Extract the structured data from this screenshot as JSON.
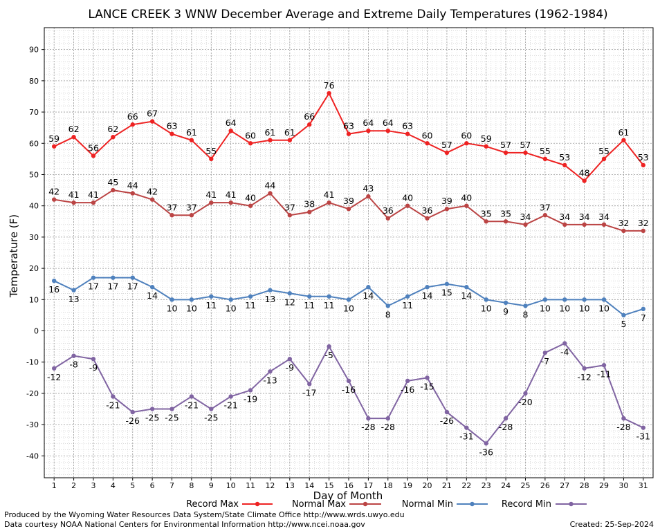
{
  "chart_data": {
    "type": "line",
    "title": "LANCE CREEK 3 WNW December Average and Extreme Daily Temperatures (1962-1984)",
    "xlabel": "Day of Month",
    "ylabel": "Temperature (F)",
    "ylim": [
      -47,
      97
    ],
    "xlim": [
      0.5,
      31.5
    ],
    "yticks": [
      -40,
      -30,
      -20,
      -10,
      0,
      10,
      20,
      30,
      40,
      50,
      60,
      70,
      80,
      90
    ],
    "x": [
      1,
      2,
      3,
      4,
      5,
      6,
      7,
      8,
      9,
      10,
      11,
      12,
      13,
      14,
      15,
      16,
      17,
      18,
      19,
      20,
      21,
      22,
      23,
      24,
      25,
      26,
      27,
      28,
      29,
      30,
      31
    ],
    "grid": true,
    "legend": "bottom",
    "series": [
      {
        "name": "Record Max",
        "color": "#ee2222",
        "values": [
          59,
          62,
          56,
          62,
          66,
          67,
          63,
          61,
          55,
          64,
          60,
          61,
          61,
          66,
          76,
          63,
          64,
          64,
          63,
          60,
          57,
          60,
          59,
          57,
          57,
          55,
          53,
          48,
          55,
          61,
          53
        ]
      },
      {
        "name": "Normal Max",
        "color": "#bb4444",
        "values": [
          42,
          41,
          41,
          45,
          44,
          42,
          37,
          37,
          41,
          41,
          40,
          44,
          37,
          38,
          41,
          39,
          43,
          36,
          40,
          36,
          39,
          40,
          35,
          35,
          34,
          37,
          34,
          34,
          34,
          32,
          32
        ]
      },
      {
        "name": "Normal Min",
        "color": "#4f81bd",
        "values": [
          16,
          13,
          17,
          17,
          17,
          14,
          10,
          10,
          11,
          10,
          11,
          13,
          12,
          11,
          11,
          10,
          14,
          8,
          11,
          14,
          15,
          14,
          10,
          9,
          8,
          10,
          10,
          10,
          10,
          5,
          7
        ]
      },
      {
        "name": "Record Min",
        "color": "#8064a2",
        "values": [
          -12,
          -8,
          -9,
          -21,
          -26,
          -25,
          -25,
          -21,
          -25,
          -21,
          -19,
          -13,
          -9,
          -17,
          -5,
          -16,
          -28,
          -28,
          -16,
          -15,
          -26,
          -31,
          -36,
          -28,
          -20,
          -7,
          -4,
          -12,
          -11,
          -28,
          -31
        ]
      }
    ]
  },
  "footer": {
    "line1": "Produced by the Wyoming Water Resources Data System/State Climate Office http://www.wrds.uwyo.edu",
    "line2": "Data courtesy NOAA National Centers for Environmental Information http://www.ncei.noaa.gov",
    "created": "Created:  25-Sep-2024"
  }
}
